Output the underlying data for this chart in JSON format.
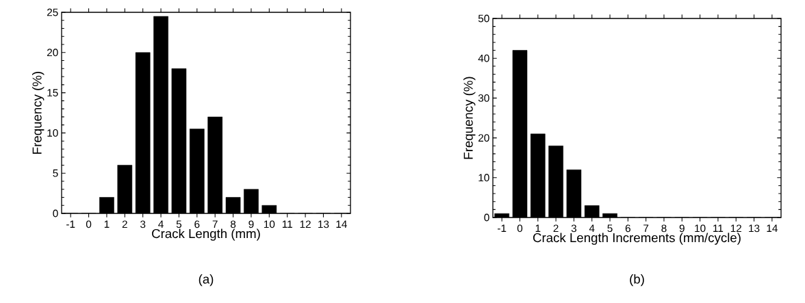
{
  "chart_data": [
    {
      "type": "bar",
      "xlabel": "Crack Length (mm)",
      "ylabel": "Frequency (%)",
      "categories": [
        "-1",
        "0",
        "1",
        "2",
        "3",
        "4",
        "5",
        "6",
        "7",
        "8",
        "9",
        "10",
        "11",
        "12",
        "13",
        "14"
      ],
      "values": [
        0,
        0,
        2,
        6,
        20,
        24.5,
        18,
        10.5,
        12,
        2,
        3,
        1,
        0,
        0,
        0,
        0
      ],
      "color": "#000000",
      "ylim": [
        0,
        25
      ],
      "yticks": [
        0,
        5,
        10,
        15,
        20,
        25
      ],
      "grid": false,
      "annotations": [
        "(a)"
      ]
    },
    {
      "type": "bar",
      "xlabel": "Crack Length Increments (mm/cycle)",
      "ylabel": "Frequency (%)",
      "categories": [
        "-1",
        "0",
        "1",
        "2",
        "3",
        "4",
        "5",
        "6",
        "7",
        "8",
        "9",
        "10",
        "11",
        "12",
        "13",
        "14"
      ],
      "values": [
        1,
        42,
        21,
        18,
        12,
        3,
        1,
        0,
        0,
        0,
        0,
        0,
        0,
        0,
        0,
        0
      ],
      "color": "#000000",
      "ylim": [
        0,
        50
      ],
      "yticks": [
        0,
        10,
        20,
        30,
        40,
        50
      ],
      "grid": false,
      "annotations": [
        "(b)"
      ]
    }
  ]
}
